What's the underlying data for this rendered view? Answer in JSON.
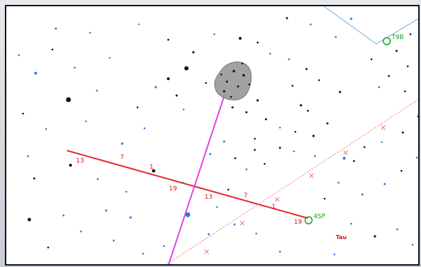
{
  "chart": {
    "colors": {
      "background": "#ffffff",
      "ecliptic": "#e8262e",
      "equator": "#f07a7a",
      "comet_path": "#e040e8",
      "boundary": "#6aaee0",
      "star_blue": "#2b7be0",
      "star_dark": "#111111",
      "label_green": "#16a028",
      "label_red": "#e0101a"
    },
    "ticks_main": [
      "13",
      "7",
      "1",
      "19",
      "13",
      "7",
      "1",
      "19"
    ],
    "objects": {
      "planet_1": "4SP",
      "planet_2": "T9B"
    },
    "star_name": "Tau"
  }
}
